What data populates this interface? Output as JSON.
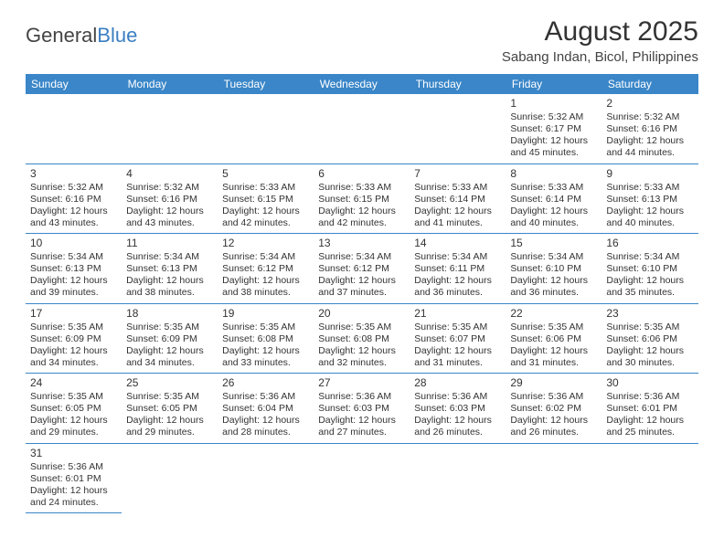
{
  "logo": {
    "text1": "General",
    "text2": "Blue"
  },
  "title": "August 2025",
  "subtitle": "Sabang Indan, Bicol, Philippines",
  "colors": {
    "header_bg": "#3a86c8",
    "header_fg": "#ffffff",
    "text": "#333333",
    "rule": "#3a86c8"
  },
  "day_headers": [
    "Sunday",
    "Monday",
    "Tuesday",
    "Wednesday",
    "Thursday",
    "Friday",
    "Saturday"
  ],
  "weeks": [
    [
      null,
      null,
      null,
      null,
      null,
      {
        "n": "1",
        "sr": "Sunrise: 5:32 AM",
        "ss": "Sunset: 6:17 PM",
        "dl1": "Daylight: 12 hours",
        "dl2": "and 45 minutes."
      },
      {
        "n": "2",
        "sr": "Sunrise: 5:32 AM",
        "ss": "Sunset: 6:16 PM",
        "dl1": "Daylight: 12 hours",
        "dl2": "and 44 minutes."
      }
    ],
    [
      {
        "n": "3",
        "sr": "Sunrise: 5:32 AM",
        "ss": "Sunset: 6:16 PM",
        "dl1": "Daylight: 12 hours",
        "dl2": "and 43 minutes."
      },
      {
        "n": "4",
        "sr": "Sunrise: 5:32 AM",
        "ss": "Sunset: 6:16 PM",
        "dl1": "Daylight: 12 hours",
        "dl2": "and 43 minutes."
      },
      {
        "n": "5",
        "sr": "Sunrise: 5:33 AM",
        "ss": "Sunset: 6:15 PM",
        "dl1": "Daylight: 12 hours",
        "dl2": "and 42 minutes."
      },
      {
        "n": "6",
        "sr": "Sunrise: 5:33 AM",
        "ss": "Sunset: 6:15 PM",
        "dl1": "Daylight: 12 hours",
        "dl2": "and 42 minutes."
      },
      {
        "n": "7",
        "sr": "Sunrise: 5:33 AM",
        "ss": "Sunset: 6:14 PM",
        "dl1": "Daylight: 12 hours",
        "dl2": "and 41 minutes."
      },
      {
        "n": "8",
        "sr": "Sunrise: 5:33 AM",
        "ss": "Sunset: 6:14 PM",
        "dl1": "Daylight: 12 hours",
        "dl2": "and 40 minutes."
      },
      {
        "n": "9",
        "sr": "Sunrise: 5:33 AM",
        "ss": "Sunset: 6:13 PM",
        "dl1": "Daylight: 12 hours",
        "dl2": "and 40 minutes."
      }
    ],
    [
      {
        "n": "10",
        "sr": "Sunrise: 5:34 AM",
        "ss": "Sunset: 6:13 PM",
        "dl1": "Daylight: 12 hours",
        "dl2": "and 39 minutes."
      },
      {
        "n": "11",
        "sr": "Sunrise: 5:34 AM",
        "ss": "Sunset: 6:13 PM",
        "dl1": "Daylight: 12 hours",
        "dl2": "and 38 minutes."
      },
      {
        "n": "12",
        "sr": "Sunrise: 5:34 AM",
        "ss": "Sunset: 6:12 PM",
        "dl1": "Daylight: 12 hours",
        "dl2": "and 38 minutes."
      },
      {
        "n": "13",
        "sr": "Sunrise: 5:34 AM",
        "ss": "Sunset: 6:12 PM",
        "dl1": "Daylight: 12 hours",
        "dl2": "and 37 minutes."
      },
      {
        "n": "14",
        "sr": "Sunrise: 5:34 AM",
        "ss": "Sunset: 6:11 PM",
        "dl1": "Daylight: 12 hours",
        "dl2": "and 36 minutes."
      },
      {
        "n": "15",
        "sr": "Sunrise: 5:34 AM",
        "ss": "Sunset: 6:10 PM",
        "dl1": "Daylight: 12 hours",
        "dl2": "and 36 minutes."
      },
      {
        "n": "16",
        "sr": "Sunrise: 5:34 AM",
        "ss": "Sunset: 6:10 PM",
        "dl1": "Daylight: 12 hours",
        "dl2": "and 35 minutes."
      }
    ],
    [
      {
        "n": "17",
        "sr": "Sunrise: 5:35 AM",
        "ss": "Sunset: 6:09 PM",
        "dl1": "Daylight: 12 hours",
        "dl2": "and 34 minutes."
      },
      {
        "n": "18",
        "sr": "Sunrise: 5:35 AM",
        "ss": "Sunset: 6:09 PM",
        "dl1": "Daylight: 12 hours",
        "dl2": "and 34 minutes."
      },
      {
        "n": "19",
        "sr": "Sunrise: 5:35 AM",
        "ss": "Sunset: 6:08 PM",
        "dl1": "Daylight: 12 hours",
        "dl2": "and 33 minutes."
      },
      {
        "n": "20",
        "sr": "Sunrise: 5:35 AM",
        "ss": "Sunset: 6:08 PM",
        "dl1": "Daylight: 12 hours",
        "dl2": "and 32 minutes."
      },
      {
        "n": "21",
        "sr": "Sunrise: 5:35 AM",
        "ss": "Sunset: 6:07 PM",
        "dl1": "Daylight: 12 hours",
        "dl2": "and 31 minutes."
      },
      {
        "n": "22",
        "sr": "Sunrise: 5:35 AM",
        "ss": "Sunset: 6:06 PM",
        "dl1": "Daylight: 12 hours",
        "dl2": "and 31 minutes."
      },
      {
        "n": "23",
        "sr": "Sunrise: 5:35 AM",
        "ss": "Sunset: 6:06 PM",
        "dl1": "Daylight: 12 hours",
        "dl2": "and 30 minutes."
      }
    ],
    [
      {
        "n": "24",
        "sr": "Sunrise: 5:35 AM",
        "ss": "Sunset: 6:05 PM",
        "dl1": "Daylight: 12 hours",
        "dl2": "and 29 minutes."
      },
      {
        "n": "25",
        "sr": "Sunrise: 5:35 AM",
        "ss": "Sunset: 6:05 PM",
        "dl1": "Daylight: 12 hours",
        "dl2": "and 29 minutes."
      },
      {
        "n": "26",
        "sr": "Sunrise: 5:36 AM",
        "ss": "Sunset: 6:04 PM",
        "dl1": "Daylight: 12 hours",
        "dl2": "and 28 minutes."
      },
      {
        "n": "27",
        "sr": "Sunrise: 5:36 AM",
        "ss": "Sunset: 6:03 PM",
        "dl1": "Daylight: 12 hours",
        "dl2": "and 27 minutes."
      },
      {
        "n": "28",
        "sr": "Sunrise: 5:36 AM",
        "ss": "Sunset: 6:03 PM",
        "dl1": "Daylight: 12 hours",
        "dl2": "and 26 minutes."
      },
      {
        "n": "29",
        "sr": "Sunrise: 5:36 AM",
        "ss": "Sunset: 6:02 PM",
        "dl1": "Daylight: 12 hours",
        "dl2": "and 26 minutes."
      },
      {
        "n": "30",
        "sr": "Sunrise: 5:36 AM",
        "ss": "Sunset: 6:01 PM",
        "dl1": "Daylight: 12 hours",
        "dl2": "and 25 minutes."
      }
    ],
    [
      {
        "n": "31",
        "sr": "Sunrise: 5:36 AM",
        "ss": "Sunset: 6:01 PM",
        "dl1": "Daylight: 12 hours",
        "dl2": "and 24 minutes."
      },
      null,
      null,
      null,
      null,
      null,
      null
    ]
  ]
}
